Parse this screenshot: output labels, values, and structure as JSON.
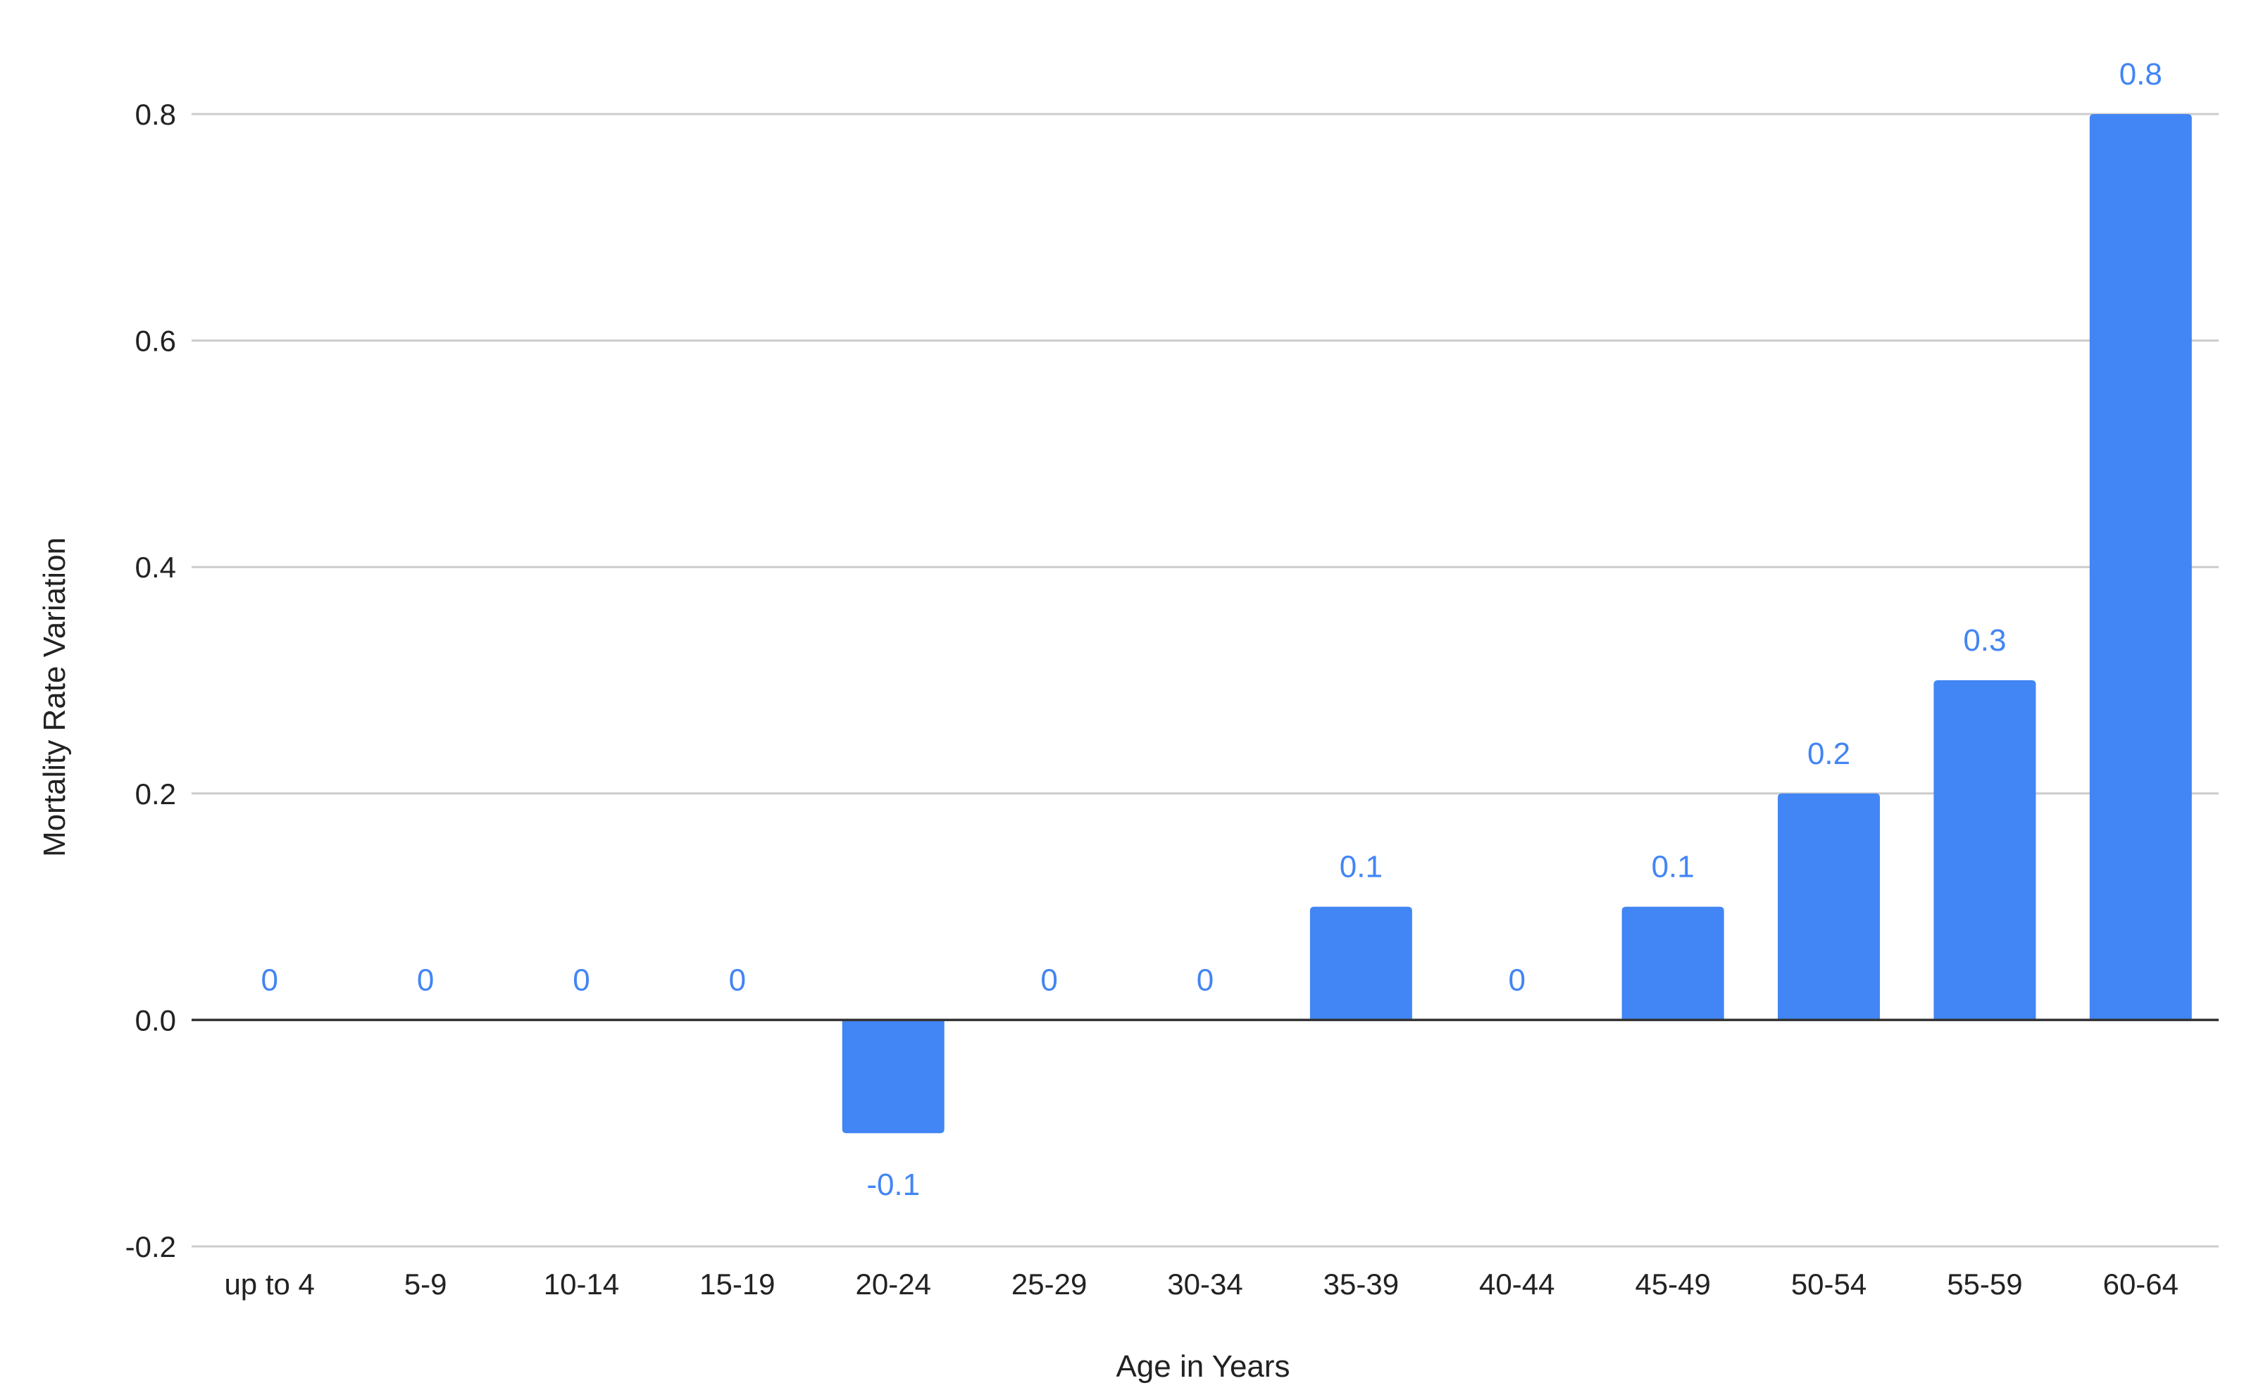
{
  "chart_data": {
    "type": "bar",
    "title": "",
    "xlabel": "Age in Years",
    "ylabel": "Mortality Rate Variation",
    "categories": [
      "up to 4",
      "5-9",
      "10-14",
      "15-19",
      "20-24",
      "25-29",
      "30-34",
      "35-39",
      "40-44",
      "45-49",
      "50-54",
      "55-59",
      "60-64"
    ],
    "values": [
      0,
      0,
      0,
      0,
      -0.1,
      0,
      0,
      0.1,
      0,
      0.1,
      0.2,
      0.3,
      0.8
    ],
    "data_labels": [
      "0",
      "0",
      "0",
      "0",
      "-0.1",
      "0",
      "0",
      "0.1",
      "0",
      "0.1",
      "0.2",
      "0.3",
      "0.8"
    ],
    "ylim": [
      -0.2,
      0.8
    ],
    "yticks": [
      -0.2,
      0.0,
      0.2,
      0.4,
      0.6,
      0.8
    ],
    "ytick_labels": [
      "-0.2",
      "0.0",
      "0.2",
      "0.4",
      "0.6",
      "0.8"
    ],
    "grid": true,
    "legend": "none",
    "colors": {
      "bar": "#4285f4",
      "data_label": "#4285f4",
      "gridline": "#cccccc",
      "zero_line": "#333333",
      "text": "#222222"
    }
  }
}
